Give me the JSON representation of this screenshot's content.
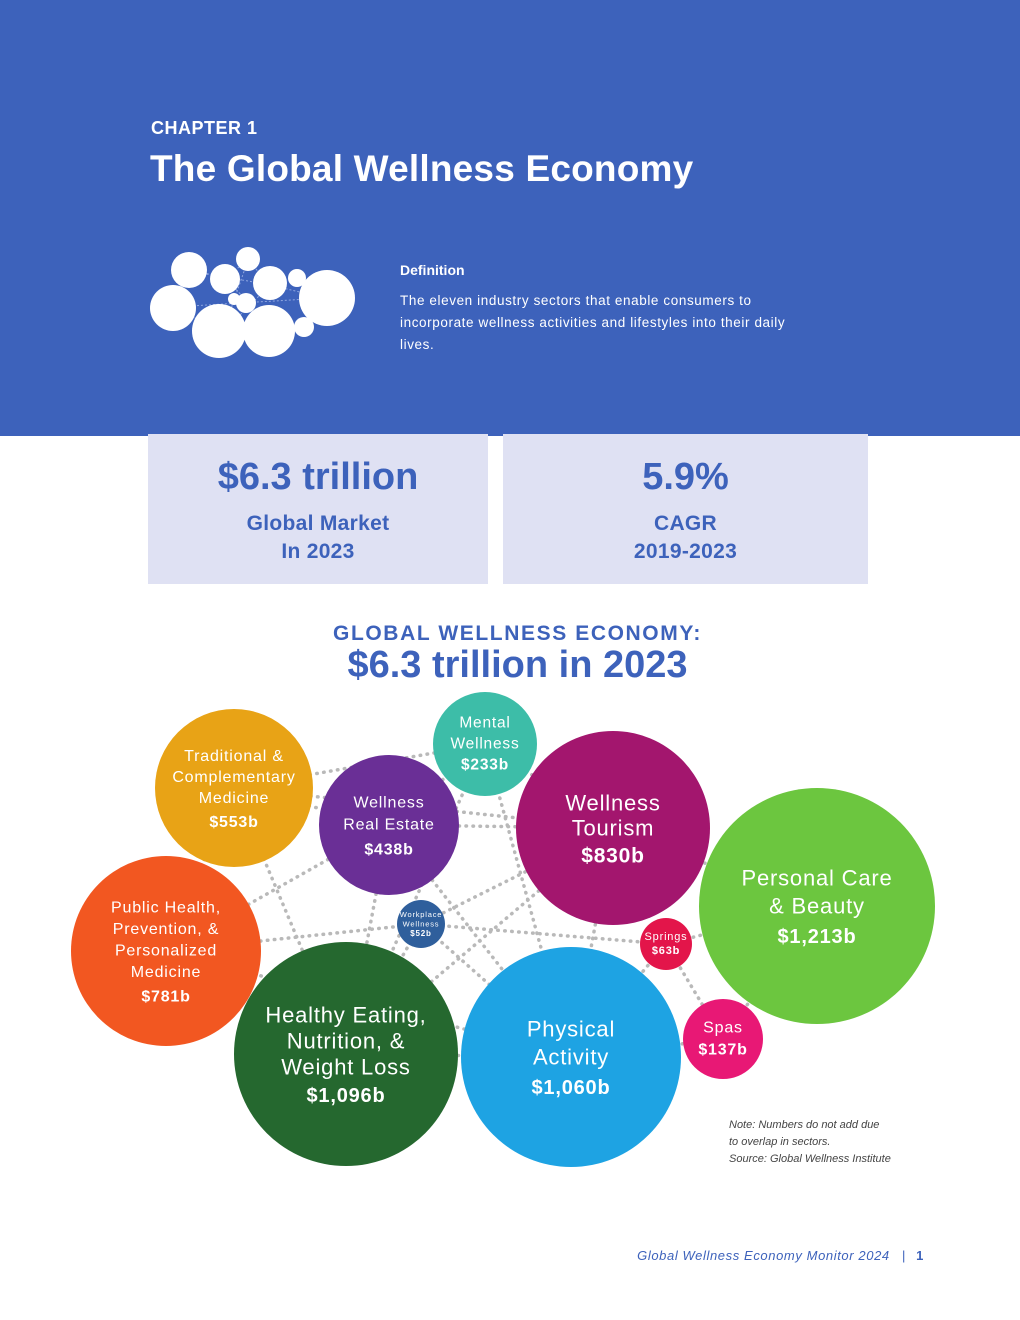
{
  "header": {
    "chapter": "CHAPTER 1",
    "title": "The Global Wellness Economy",
    "definition_label": "Definition",
    "definition_text": "The eleven industry sectors that enable consumers to incorporate wellness activities and lifestyles into their daily lives."
  },
  "stats": [
    {
      "value": "$6.3 trillion",
      "label": "Global Market\nIn 2023"
    },
    {
      "value": "5.9%",
      "label": "CAGR\n2019-2023"
    }
  ],
  "chart_title": {
    "subtitle": "GLOBAL WELLNESS ECONOMY:",
    "title": "$6.3 trillion in 2023"
  },
  "chart_data": {
    "type": "bubble",
    "unit": "b",
    "sectors": [
      {
        "name": "Traditional & Complementary Medicine",
        "lines": [
          "Traditional &",
          "Complementary",
          "Medicine"
        ],
        "value_label": "$553b",
        "value": 553,
        "color": "#e8a316"
      },
      {
        "name": "Mental Wellness",
        "lines": [
          "Mental",
          "Wellness"
        ],
        "value_label": "$233b",
        "value": 233,
        "color": "#3dbda8"
      },
      {
        "name": "Wellness Real Estate",
        "lines": [
          "Wellness",
          "Real Estate"
        ],
        "value_label": "$438b",
        "value": 438,
        "color": "#6a2f96"
      },
      {
        "name": "Wellness Tourism",
        "lines": [
          "Wellness",
          "Tourism"
        ],
        "value_label": "$830b",
        "value": 830,
        "color": "#a3166e"
      },
      {
        "name": "Personal Care & Beauty",
        "lines": [
          "Personal Care",
          "& Beauty"
        ],
        "value_label": "$1,213b",
        "value": 1213,
        "color": "#6cc63f"
      },
      {
        "name": "Public Health, Prevention, & Personalized Medicine",
        "lines": [
          "Public Health,",
          "Prevention, &",
          "Personalized",
          "Medicine"
        ],
        "value_label": "$781b",
        "value": 781,
        "color": "#f25721"
      },
      {
        "name": "Workplace Wellness",
        "lines": [
          "Workplace",
          "Wellness"
        ],
        "value_label": "$52b",
        "value": 52,
        "color": "#2f5f9c"
      },
      {
        "name": "Springs",
        "lines": [
          "Springs"
        ],
        "value_label": "$63b",
        "value": 63,
        "color": "#e3154a"
      },
      {
        "name": "Spas",
        "lines": [
          "Spas"
        ],
        "value_label": "$137b",
        "value": 137,
        "color": "#e81875"
      },
      {
        "name": "Healthy Eating, Nutrition, & Weight Loss",
        "lines": [
          "Healthy Eating,",
          "Nutrition, &",
          "Weight Loss"
        ],
        "value_label": "$1,096b",
        "value": 1096,
        "color": "#25682f"
      },
      {
        "name": "Physical Activity",
        "lines": [
          "Physical",
          "Activity"
        ],
        "value_label": "$1,060b",
        "value": 1060,
        "color": "#1ea3e3"
      }
    ]
  },
  "note": {
    "lines": [
      "Note: Numbers do not add due",
      "to overlap in sectors.",
      "Source: Global Wellness Institute"
    ]
  },
  "footer": {
    "title": "Global Wellness Economy Monitor 2024",
    "separator": "|",
    "page": "1"
  }
}
